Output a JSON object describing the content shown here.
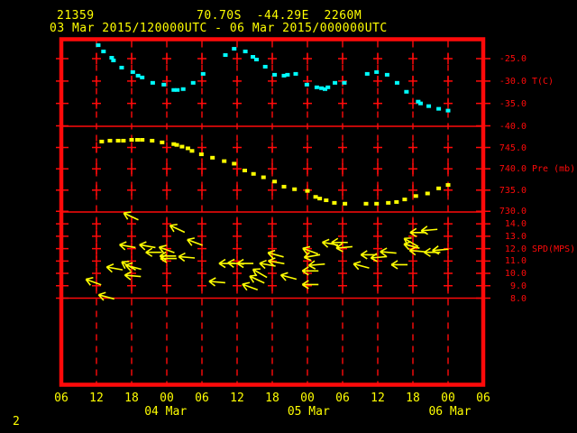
{
  "colors": {
    "background": "#000000",
    "grid_and_axis": "#ff0a0a",
    "header_text": "#ffff00",
    "temperature_points": "#00ffff",
    "pressure_points": "#ffff00",
    "wind_arrows": "#ffff00"
  },
  "header": {
    "station_id": "21359",
    "location": "70.70S  -44.29E  2260M",
    "period": "03 Mar 2015/120000UTC - 06 Mar 2015/000000UTC"
  },
  "page_number": "2",
  "chart_data": {
    "type": "scatter",
    "title": "21359  70.70S -44.29E 2260M  03 Mar 2015/120000UTC - 06 Mar 2015/000000UTC",
    "x_axis": {
      "start": "03 Mar 2015 06UTC",
      "end": "06 Mar 2015 06UTC",
      "range_hours": [
        0,
        72
      ],
      "tick_interval_hours": 6,
      "hour_labels": [
        "06",
        "12",
        "18",
        "00",
        "06",
        "12",
        "18",
        "00",
        "06",
        "12",
        "18",
        "00",
        "06"
      ],
      "date_labels": [
        {
          "h": 17.8,
          "label": "04 Mar"
        },
        {
          "h": 42.2,
          "label": "05 Mar"
        },
        {
          "h": 66.3,
          "label": "06 Mar"
        }
      ]
    },
    "panels": [
      {
        "name": "temperature",
        "unit_label": "T(C)",
        "unit_at": -30,
        "marker_color": "#00ffff",
        "ylim": [
          -40,
          -20
        ],
        "ticks": [
          {
            "v": -25,
            "label": "-25.0"
          },
          {
            "v": -30,
            "label": "-30.0"
          },
          {
            "v": -35,
            "label": "-35.0"
          },
          {
            "v": -40,
            "label": "-40.0"
          }
        ],
        "series": [
          [
            6.3,
            -22.0
          ],
          [
            7.2,
            -23.4
          ],
          [
            8.6,
            -24.8
          ],
          [
            8.9,
            -25.4
          ],
          [
            10.3,
            -27.0
          ],
          [
            12.2,
            -28.0
          ],
          [
            13.1,
            -28.8
          ],
          [
            13.8,
            -29.2
          ],
          [
            15.6,
            -30.4
          ],
          [
            17.5,
            -30.8
          ],
          [
            19.2,
            -32.0
          ],
          [
            19.8,
            -32.0
          ],
          [
            20.8,
            -31.8
          ],
          [
            22.5,
            -30.4
          ],
          [
            24.2,
            -28.4
          ],
          [
            28.0,
            -24.2
          ],
          [
            29.5,
            -22.8
          ],
          [
            31.4,
            -23.4
          ],
          [
            32.7,
            -24.6
          ],
          [
            33.3,
            -25.2
          ],
          [
            34.8,
            -26.8
          ],
          [
            36.4,
            -28.6
          ],
          [
            38.0,
            -28.8
          ],
          [
            38.6,
            -28.6
          ],
          [
            40.0,
            -28.4
          ],
          [
            41.9,
            -30.8
          ],
          [
            43.6,
            -31.4
          ],
          [
            44.4,
            -31.6
          ],
          [
            45.0,
            -31.8
          ],
          [
            45.5,
            -31.4
          ],
          [
            46.7,
            -30.4
          ],
          [
            48.3,
            -30.4
          ],
          [
            52.2,
            -28.4
          ],
          [
            53.8,
            -28.0
          ],
          [
            55.6,
            -28.6
          ],
          [
            57.3,
            -30.4
          ],
          [
            58.9,
            -32.4
          ],
          [
            60.9,
            -34.6
          ],
          [
            61.3,
            -35.0
          ],
          [
            62.7,
            -35.6
          ],
          [
            64.4,
            -36.2
          ],
          [
            66.0,
            -36.6
          ]
        ]
      },
      {
        "name": "pressure",
        "unit_label": "Pre (mb)",
        "unit_at": 740,
        "marker_color": "#ffff00",
        "ylim": [
          730,
          750
        ],
        "ticks": [
          {
            "v": 745,
            "label": "745.0"
          },
          {
            "v": 740,
            "label": "740.0"
          },
          {
            "v": 735,
            "label": "735.0"
          },
          {
            "v": 730,
            "label": "730.0"
          }
        ],
        "series": [
          [
            6.9,
            746.4
          ],
          [
            8.3,
            746.6
          ],
          [
            9.7,
            746.6
          ],
          [
            10.6,
            746.6
          ],
          [
            12.0,
            746.8
          ],
          [
            13.0,
            746.8
          ],
          [
            13.8,
            746.8
          ],
          [
            15.5,
            746.6
          ],
          [
            17.2,
            746.2
          ],
          [
            19.2,
            745.8
          ],
          [
            19.7,
            745.6
          ],
          [
            20.6,
            745.2
          ],
          [
            21.6,
            744.8
          ],
          [
            22.3,
            744.2
          ],
          [
            23.9,
            743.4
          ],
          [
            25.8,
            742.6
          ],
          [
            27.8,
            741.8
          ],
          [
            29.5,
            741.2
          ],
          [
            31.3,
            739.6
          ],
          [
            32.8,
            738.8
          ],
          [
            34.5,
            738.0
          ],
          [
            36.4,
            737.0
          ],
          [
            38.0,
            735.8
          ],
          [
            39.8,
            735.2
          ],
          [
            42.0,
            734.8
          ],
          [
            43.4,
            733.4
          ],
          [
            44.1,
            733.0
          ],
          [
            45.2,
            732.6
          ],
          [
            46.6,
            732.0
          ],
          [
            48.4,
            731.8
          ],
          [
            52.0,
            731.8
          ],
          [
            53.8,
            731.8
          ],
          [
            55.8,
            732.0
          ],
          [
            57.2,
            732.2
          ],
          [
            58.6,
            732.8
          ],
          [
            60.5,
            733.6
          ],
          [
            62.5,
            734.2
          ],
          [
            64.4,
            735.4
          ],
          [
            66.0,
            736.2
          ]
        ]
      },
      {
        "name": "wind_speed",
        "unit_label": "SPD(MPS)",
        "unit_at": 12,
        "marker_color": "#ffff00",
        "ylim": [
          8,
          15
        ],
        "ticks": [
          {
            "v": 14,
            "label": "14.0"
          },
          {
            "v": 13,
            "label": "13.0"
          },
          {
            "v": 12,
            "label": "12.0"
          },
          {
            "v": 11,
            "label": "11.0"
          },
          {
            "v": 10,
            "label": "10.0"
          },
          {
            "v": 9,
            "label": "9.0"
          },
          {
            "v": 8,
            "label": "8.0"
          }
        ],
        "arrows": [
          [
            5.5,
            9.3,
            20
          ],
          [
            7.7,
            8.1,
            15
          ],
          [
            9.1,
            10.4,
            10
          ],
          [
            11.3,
            12.2,
            10
          ],
          [
            11.5,
            10.6,
            30
          ],
          [
            11.9,
            14.6,
            25
          ],
          [
            12.3,
            10.5,
            15
          ],
          [
            12.2,
            9.8,
            5
          ],
          [
            14.7,
            12.2,
            10
          ],
          [
            15.8,
            11.7,
            0
          ],
          [
            18.0,
            11.9,
            20
          ],
          [
            18.2,
            11.4,
            0
          ],
          [
            18.3,
            11.2,
            0
          ],
          [
            19.8,
            13.6,
            25
          ],
          [
            21.4,
            11.3,
            5
          ],
          [
            22.8,
            12.5,
            20
          ],
          [
            26.6,
            9.3,
            5
          ],
          [
            28.3,
            10.8,
            0
          ],
          [
            29.8,
            10.8,
            5
          ],
          [
            31.4,
            10.8,
            0
          ],
          [
            32.2,
            8.9,
            20
          ],
          [
            33.4,
            9.5,
            25
          ],
          [
            33.9,
            10.0,
            30
          ],
          [
            35.2,
            10.7,
            10
          ],
          [
            36.6,
            11.5,
            15
          ],
          [
            36.7,
            10.9,
            10
          ],
          [
            38.8,
            9.7,
            15
          ],
          [
            42.5,
            11.8,
            20
          ],
          [
            42.8,
            11.4,
            -10
          ],
          [
            43.6,
            10.7,
            -5
          ],
          [
            42.5,
            10.2,
            0
          ],
          [
            42.5,
            9.1,
            0
          ],
          [
            45.9,
            12.4,
            10
          ],
          [
            47.5,
            12.5,
            0
          ],
          [
            48.3,
            12.1,
            -5
          ],
          [
            51.2,
            10.6,
            15
          ],
          [
            52.5,
            11.5,
            0
          ],
          [
            54.2,
            11.3,
            -5
          ],
          [
            55.8,
            11.7,
            5
          ],
          [
            57.7,
            10.7,
            0
          ],
          [
            59.7,
            12.5,
            30
          ],
          [
            60.9,
            13.3,
            0
          ],
          [
            62.8,
            13.5,
            -5
          ],
          [
            59.8,
            12.2,
            15
          ],
          [
            60.8,
            11.8,
            5
          ],
          [
            63.3,
            11.7,
            0
          ],
          [
            64.7,
            11.9,
            -5
          ]
        ]
      }
    ]
  }
}
